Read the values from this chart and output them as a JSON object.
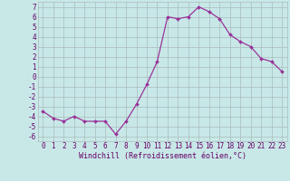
{
  "x": [
    0,
    1,
    2,
    3,
    4,
    5,
    6,
    7,
    8,
    9,
    10,
    11,
    12,
    13,
    14,
    15,
    16,
    17,
    18,
    19,
    20,
    21,
    22,
    23
  ],
  "y": [
    -3.5,
    -4.2,
    -4.5,
    -4.0,
    -4.5,
    -4.5,
    -4.5,
    -5.8,
    -4.5,
    -2.8,
    -0.8,
    1.5,
    6.0,
    5.8,
    6.0,
    7.0,
    6.5,
    5.8,
    4.2,
    3.5,
    3.0,
    1.8,
    1.5,
    0.5
  ],
  "line_color": "#993399",
  "marker": "D",
  "marker_size": 2.0,
  "bg_color": "#c8e8e8",
  "grid_color": "#aabbbb",
  "xlabel": "Windchill (Refroidissement éolien,°C)",
  "xlim": [
    -0.5,
    23.5
  ],
  "ylim": [
    -6.5,
    7.5
  ],
  "yticks": [
    -6,
    -5,
    -4,
    -3,
    -2,
    -1,
    0,
    1,
    2,
    3,
    4,
    5,
    6,
    7
  ],
  "xticks": [
    0,
    1,
    2,
    3,
    4,
    5,
    6,
    7,
    8,
    9,
    10,
    11,
    12,
    13,
    14,
    15,
    16,
    17,
    18,
    19,
    20,
    21,
    22,
    23
  ],
  "tick_color": "#660066",
  "label_fontsize": 6.0,
  "tick_fontsize": 5.5,
  "linewidth": 0.9
}
